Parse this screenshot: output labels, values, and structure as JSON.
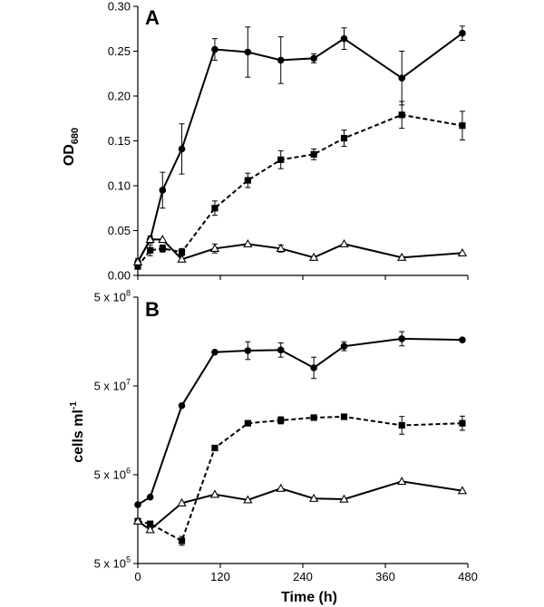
{
  "chart_data": [
    {
      "panel": "A",
      "type": "line",
      "ylabel": "OD",
      "ylabel_sub": "680",
      "ylim": [
        0,
        0.3
      ],
      "xlim": [
        0,
        480
      ],
      "yticks": [
        {
          "value": 0.0,
          "label": "0.00"
        },
        {
          "value": 0.05,
          "label": "0.05"
        },
        {
          "value": 0.1,
          "label": "0.10"
        },
        {
          "value": 0.15,
          "label": "0.15"
        },
        {
          "value": 0.2,
          "label": "0.20"
        },
        {
          "value": 0.25,
          "label": "0.25"
        },
        {
          "value": 0.3,
          "label": "0.30"
        }
      ],
      "series": [
        {
          "name": "circles",
          "marker": "circle",
          "dash": "solid",
          "x": [
            0,
            18,
            36,
            64,
            112,
            160,
            208,
            256,
            300,
            384,
            472
          ],
          "y": [
            0.015,
            0.04,
            0.095,
            0.141,
            0.252,
            0.249,
            0.24,
            0.242,
            0.264,
            0.22,
            0.27
          ],
          "err": [
            0.004,
            0.004,
            0.02,
            0.028,
            0.012,
            0.028,
            0.026,
            0.005,
            0.012,
            0.03,
            0.008
          ]
        },
        {
          "name": "squares",
          "marker": "square",
          "dash": "dashed",
          "x": [
            0,
            18,
            36,
            64,
            112,
            160,
            208,
            256,
            300,
            384,
            472
          ],
          "y": [
            0.01,
            0.028,
            0.03,
            0.026,
            0.075,
            0.106,
            0.129,
            0.135,
            0.153,
            0.179,
            0.167
          ],
          "err": [
            0.002,
            0.006,
            0.004,
            0.004,
            0.008,
            0.008,
            0.01,
            0.006,
            0.009,
            0.015,
            0.016
          ]
        },
        {
          "name": "triangles",
          "marker": "triangle",
          "dash": "solid",
          "x": [
            0,
            18,
            36,
            64,
            112,
            160,
            208,
            256,
            300,
            384,
            472
          ],
          "y": [
            0.015,
            0.04,
            0.04,
            0.018,
            0.03,
            0.035,
            0.03,
            0.02,
            0.035,
            0.02,
            0.025
          ],
          "err": [
            0,
            0,
            0,
            0,
            0.005,
            0,
            0.004,
            0,
            0,
            0,
            0
          ]
        }
      ]
    },
    {
      "panel": "B",
      "type": "line",
      "yscale": "log",
      "ylabel": "cells ml",
      "ylabel_sup": "-1",
      "ylim": [
        500000,
        500000000
      ],
      "xlim": [
        0,
        480
      ],
      "xlabel": "Time (h)",
      "xticks": [
        0,
        120,
        240,
        360,
        480
      ],
      "yticks": [
        {
          "value": 500000,
          "label": "5 x 10",
          "exp": "5"
        },
        {
          "value": 5000000,
          "label": "5 x 10",
          "exp": "6"
        },
        {
          "value": 50000000,
          "label": "5 x 10",
          "exp": "7"
        },
        {
          "value": 500000000,
          "label": "5 x 10",
          "exp": "8"
        }
      ],
      "series": [
        {
          "name": "circles",
          "marker": "circle",
          "dash": "solid",
          "x": [
            0,
            18,
            64,
            112,
            160,
            208,
            256,
            300,
            384,
            472
          ],
          "y": [
            2300000,
            2800000,
            30000000,
            120000000,
            125000000,
            127000000,
            80000000,
            140000000,
            170000000,
            165000000
          ],
          "err": [
            0,
            0,
            0,
            0,
            0.1,
            0.08,
            0.12,
            0.05,
            0.08,
            0
          ],
          "errscale": "log10"
        },
        {
          "name": "squares",
          "marker": "square",
          "dash": "dashed",
          "x": [
            0,
            18,
            64,
            112,
            160,
            208,
            256,
            300,
            384,
            472
          ],
          "y": [
            1500000,
            1400000,
            900000,
            10000000,
            19000000,
            20500000,
            22000000,
            22500000,
            18000000,
            19000000
          ],
          "err": [
            0,
            0,
            0.05,
            0,
            0,
            0.04,
            0,
            0,
            0.1,
            0.08
          ],
          "errscale": "log10"
        },
        {
          "name": "triangles",
          "marker": "triangle",
          "dash": "solid",
          "x": [
            0,
            18,
            64,
            112,
            160,
            208,
            256,
            300,
            384,
            472
          ],
          "y": [
            1500000,
            1200000,
            2400000,
            3000000,
            2600000,
            3500000,
            2700000,
            2650000,
            4200000,
            3300000
          ],
          "err": [
            0,
            0,
            0,
            0,
            0,
            0,
            0,
            0,
            0,
            0
          ],
          "errscale": "log10"
        }
      ]
    }
  ]
}
